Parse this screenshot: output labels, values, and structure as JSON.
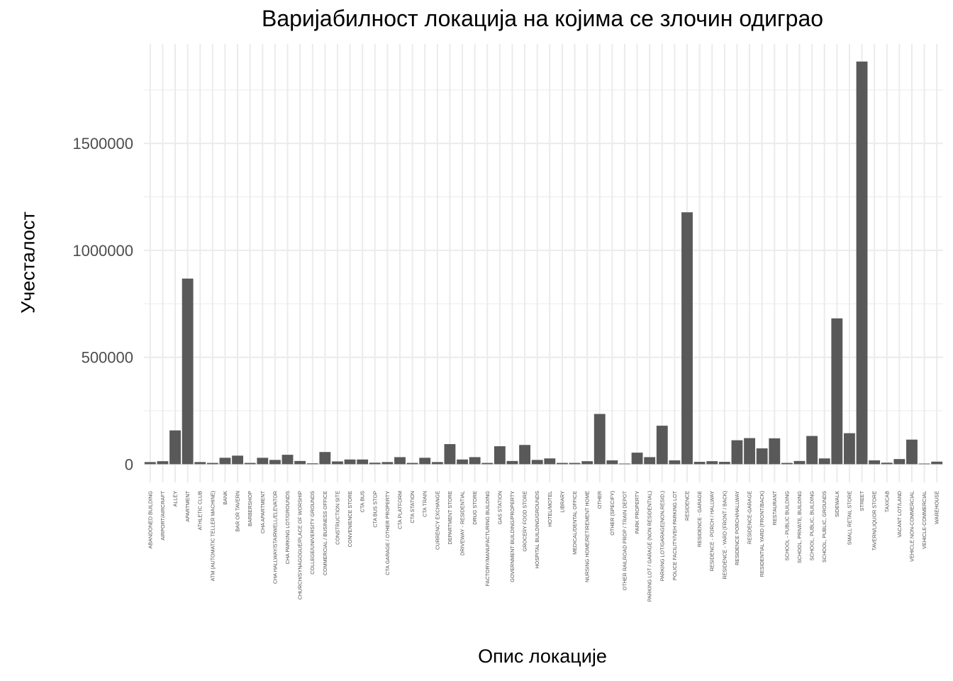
{
  "chart_data": {
    "type": "bar",
    "title": "Варијабилност локација на којима се злочин одиграо",
    "xlabel": "Опис локације",
    "ylabel": "Учесталост",
    "ylim": [
      -85000,
      1965000
    ],
    "yticks": [
      0,
      500000,
      1000000,
      1500000
    ],
    "grid": true,
    "bar_color": "#595959",
    "grid_color": "#ebebeb",
    "categories": [
      "ABANDONED BUILDING",
      "AIRPORT/AIRCRAFT",
      "ALLEY",
      "APARTMENT",
      "ATHLETIC CLUB",
      "ATM (AUTOMATIC TELLER MACHINE)",
      "BANK",
      "BAR OR TAVERN",
      "BARBERSHOP",
      "CHA APARTMENT",
      "CHA HALLWAY/STAIRWELL/ELEVATOR",
      "CHA PARKING LOT/GROUNDS",
      "CHURCH/SYNAGOGUE/PLACE OF WORSHIP",
      "COLLEGE/UNIVERSITY GROUNDS",
      "COMMERCIAL / BUSINESS OFFICE",
      "CONSTRUCTION SITE",
      "CONVENIENCE STORE",
      "CTA BUS",
      "CTA BUS STOP",
      "CTA GARAGE / OTHER PROPERTY",
      "CTA PLATFORM",
      "CTA STATION",
      "CTA TRAIN",
      "CURRENCY EXCHANGE",
      "DEPARTMENT STORE",
      "DRIVEWAY - RESIDENTIAL",
      "DRUG STORE",
      "FACTORY/MANUFACTURING BUILDING",
      "GAS STATION",
      "GOVERNMENT BUILDING/PROPERTY",
      "GROCERY FOOD STORE",
      "HOSPITAL BUILDING/GROUNDS",
      "HOTEL/MOTEL",
      "LIBRARY",
      "MEDICAL/DENTAL OFFICE",
      "NURSING HOME/RETIREMENT HOME",
      "OTHER",
      "OTHER (SPECIFY)",
      "OTHER RAILROAD PROP / TRAIN DEPOT",
      "PARK PROPERTY",
      "PARKING LOT / GARAGE (NON RESIDENTIAL)",
      "PARKING LOT/GARAGE(NON.RESID.)",
      "POLICE FACILITY/VEH PARKING LOT",
      "RESIDENCE",
      "RESIDENCE - GARAGE",
      "RESIDENCE - PORCH / HALLWAY",
      "RESIDENCE - YARD (FRONT / BACK)",
      "RESIDENCE PORCH/HALLWAY",
      "RESIDENCE-GARAGE",
      "RESIDENTIAL YARD (FRONT/BACK)",
      "RESTAURANT",
      "SCHOOL - PUBLIC BUILDING",
      "SCHOOL, PRIVATE, BUILDING",
      "SCHOOL, PUBLIC, BUILDING",
      "SCHOOL, PUBLIC, GROUNDS",
      "SIDEWALK",
      "SMALL RETAIL STORE",
      "STREET",
      "TAVERN/LIQUOR STORE",
      "TAXICAB",
      "VACANT LOT/LAND",
      "VEHICLE NON-COMMERCIAL",
      "VEHICLE-COMMERCIAL",
      "WAREHOUSE"
    ],
    "values": [
      10000,
      14000,
      158000,
      868000,
      10000,
      6000,
      30000,
      40000,
      6000,
      30000,
      20000,
      44000,
      15000,
      4000,
      57000,
      13000,
      22000,
      22000,
      7000,
      10000,
      33000,
      6000,
      30000,
      10000,
      94000,
      22000,
      33000,
      6000,
      84000,
      15000,
      90000,
      20000,
      27000,
      6000,
      6000,
      14000,
      235000,
      18000,
      3000,
      54000,
      33000,
      180000,
      18000,
      1178000,
      11000,
      14000,
      11000,
      112000,
      122000,
      74000,
      121000,
      6000,
      15000,
      132000,
      27000,
      682000,
      145000,
      1883000,
      18000,
      7000,
      24000,
      115000,
      3000,
      12000
    ]
  }
}
